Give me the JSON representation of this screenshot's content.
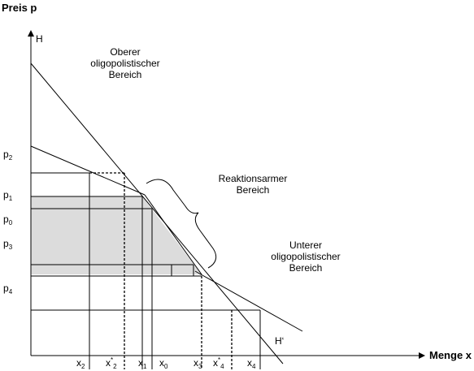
{
  "axes": {
    "y_title": "Preis p",
    "x_title": "Menge x",
    "curve_upper": "H",
    "curve_lower": "H‘"
  },
  "regions": {
    "upper": [
      "Oberer",
      "oligopolistischer",
      "Bereich"
    ],
    "middle": [
      "Reaktionsarmer",
      "Bereich"
    ],
    "lower": [
      "Unterer",
      "oligopolistischer",
      "Bereich"
    ]
  },
  "price_labels": [
    {
      "base": "p",
      "sub": "2"
    },
    {
      "base": "p",
      "sub": "1"
    },
    {
      "base": "p",
      "sub": "0"
    },
    {
      "base": "p",
      "sub": "3"
    },
    {
      "base": "p",
      "sub": "4"
    }
  ],
  "quantity_labels": [
    {
      "base": "x",
      "sub": "2"
    },
    {
      "base": "x",
      "sup": "*",
      "sub": "2"
    },
    {
      "base": "x",
      "sub": "1"
    },
    {
      "base": "x",
      "sub": "0"
    },
    {
      "base": "x",
      "sub": "3"
    },
    {
      "base": "x",
      "sup": "*",
      "sub": "4"
    },
    {
      "base": "x",
      "sub": "4"
    }
  ]
}
